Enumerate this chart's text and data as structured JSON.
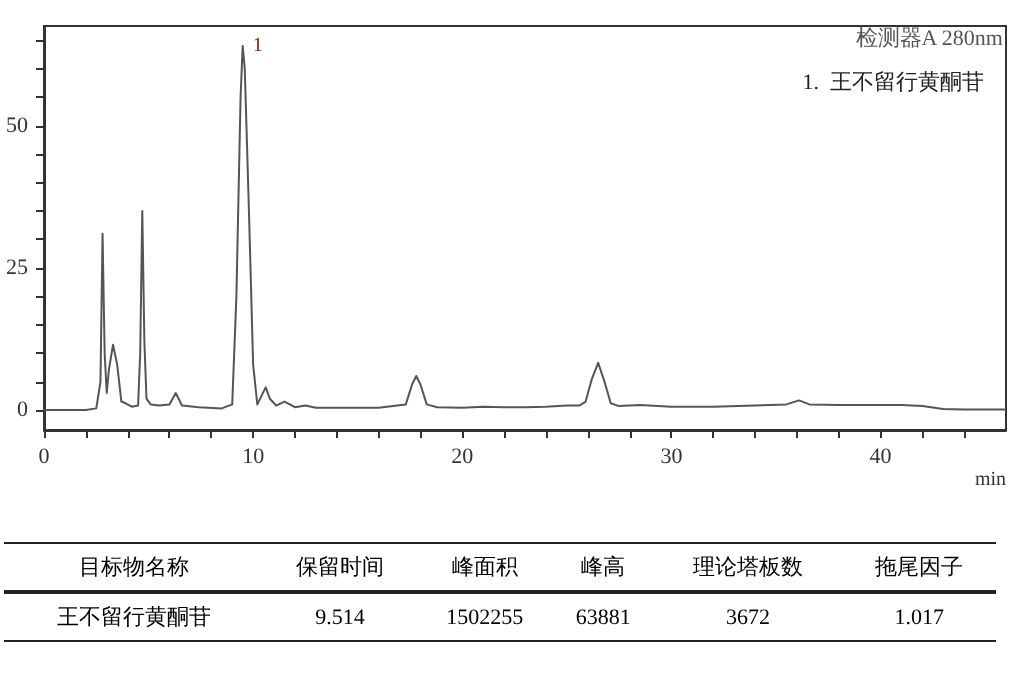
{
  "chart_data": {
    "type": "line",
    "xlabel": "min",
    "x": [
      0,
      2.0,
      2.5,
      2.7,
      2.8,
      2.9,
      3.0,
      3.1,
      3.3,
      3.5,
      3.7,
      3.9,
      4.2,
      4.5,
      4.6,
      4.7,
      4.8,
      4.9,
      5.1,
      5.5,
      6.0,
      6.3,
      6.6,
      7.4,
      8.5,
      9.0,
      9.2,
      9.4,
      9.5,
      9.6,
      9.8,
      10.0,
      10.2,
      10.4,
      10.6,
      10.8,
      11.1,
      11.5,
      12.0,
      12.5,
      13,
      14,
      16,
      17.3,
      17.6,
      17.8,
      18.0,
      18.3,
      18.8,
      20,
      21,
      22,
      23,
      24,
      25,
      25.6,
      25.9,
      26.2,
      26.5,
      26.8,
      27.1,
      27.5,
      28.5,
      30,
      32,
      34,
      35.5,
      36.1,
      36.6,
      38,
      41,
      42,
      43,
      44,
      46
    ],
    "series": [
      {
        "color": "#555555",
        "values": [
          0,
          0,
          0.3,
          5,
          31,
          10,
          3,
          7,
          11.5,
          8,
          1.5,
          1.2,
          0.6,
          0.8,
          10,
          35,
          12,
          2,
          1,
          0.8,
          1,
          3,
          0.8,
          0.5,
          0.3,
          1,
          20,
          55,
          64,
          60,
          35,
          8,
          1,
          2.5,
          4,
          2,
          0.8,
          1.5,
          0.5,
          0.8,
          0.4,
          0.4,
          0.4,
          1,
          4.5,
          6,
          4.5,
          1,
          0.5,
          0.4,
          0.6,
          0.5,
          0.5,
          0.6,
          0.8,
          0.8,
          1.5,
          5.5,
          8.3,
          5,
          1.2,
          0.7,
          0.9,
          0.6,
          0.6,
          0.8,
          1,
          1.7,
          1,
          0.9,
          0.9,
          0.7,
          0.2,
          0.1,
          0.1
        ]
      }
    ],
    "xlim": [
      0,
      46
    ],
    "ylim": [
      -3.5,
      67.5
    ],
    "xticks": [
      0,
      {
        "value": 2,
        "label": null
      },
      {
        "value": 4,
        "label": null
      },
      {
        "value": 6,
        "label": null
      },
      {
        "value": 8,
        "label": null
      },
      10,
      {
        "value": 12,
        "label": null
      },
      {
        "value": 14,
        "label": null
      },
      {
        "value": 16,
        "label": null
      },
      {
        "value": 18,
        "label": null
      },
      20,
      {
        "value": 22,
        "label": null
      },
      {
        "value": 24,
        "label": null
      },
      {
        "value": 26,
        "label": null
      },
      {
        "value": 28,
        "label": null
      },
      30,
      {
        "value": 32,
        "label": null
      },
      {
        "value": 34,
        "label": null
      },
      {
        "value": 36,
        "label": null
      },
      {
        "value": 38,
        "label": null
      },
      40,
      {
        "value": 42,
        "label": null
      },
      {
        "value": 44,
        "label": null
      }
    ],
    "yticks": [
      0,
      {
        "value": 5,
        "label": null
      },
      {
        "value": 10,
        "label": null
      },
      {
        "value": 15,
        "label": null
      },
      {
        "value": 20,
        "label": null
      },
      25,
      {
        "value": 30,
        "label": null
      },
      {
        "value": 35,
        "label": null
      },
      {
        "value": 40,
        "label": null
      },
      {
        "value": 45,
        "label": null
      },
      50,
      {
        "value": 55,
        "label": null
      },
      {
        "value": 60,
        "label": null
      },
      {
        "value": 65,
        "label": null
      }
    ],
    "grid": false,
    "marker": "none",
    "line_style": "solid",
    "annotations": [
      "检测器A 280nm",
      "1.  王不留行黄酮苷",
      {
        "text": "1",
        "x": 9.5,
        "y": 64
      },
      "目标物名称",
      "保留时间",
      "峰面积",
      "峰高",
      "理论塔板数",
      "拖尾因子",
      "王不留行黄酮苷",
      "9.514",
      "1502255",
      "63881",
      "3672",
      "1.017"
    ]
  }
}
